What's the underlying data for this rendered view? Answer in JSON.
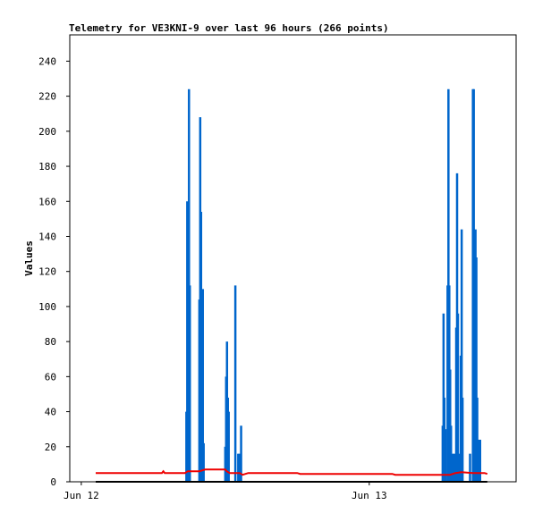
{
  "chart_data": {
    "type": "line",
    "title": "Telemetry for VE3KNI-9 over last 96 hours (266 points)",
    "xlabel": "",
    "ylabel": "Values",
    "ylim": [
      0,
      255
    ],
    "yticks": [
      0,
      20,
      40,
      60,
      80,
      100,
      120,
      140,
      160,
      180,
      200,
      220,
      240
    ],
    "xlim": [
      -0.04,
      1.51
    ],
    "xticks": [
      {
        "label": "Jun 12",
        "x": 0
      },
      {
        "label": "Jun 13",
        "x": 1
      }
    ],
    "grid": false,
    "legend": "none",
    "series": [
      {
        "color": "#0066cc",
        "style": "spikes",
        "points": [
          [
            0.365,
            40
          ],
          [
            0.368,
            160
          ],
          [
            0.371,
            120
          ],
          [
            0.374,
            224
          ],
          [
            0.377,
            112
          ],
          [
            0.41,
            104
          ],
          [
            0.413,
            208
          ],
          [
            0.416,
            154
          ],
          [
            0.419,
            66
          ],
          [
            0.422,
            110
          ],
          [
            0.425,
            22
          ],
          [
            0.5,
            20
          ],
          [
            0.503,
            60
          ],
          [
            0.506,
            80
          ],
          [
            0.509,
            48
          ],
          [
            0.512,
            40
          ],
          [
            0.535,
            112
          ],
          [
            0.545,
            16
          ],
          [
            0.55,
            16
          ],
          [
            0.555,
            32
          ],
          [
            1.255,
            32
          ],
          [
            1.258,
            96
          ],
          [
            1.261,
            48
          ],
          [
            1.265,
            30
          ],
          [
            1.272,
            112
          ],
          [
            1.275,
            224
          ],
          [
            1.278,
            112
          ],
          [
            1.281,
            64
          ],
          [
            1.284,
            32
          ],
          [
            1.29,
            16
          ],
          [
            1.296,
            16
          ],
          [
            1.302,
            88
          ],
          [
            1.305,
            176
          ],
          [
            1.308,
            96
          ],
          [
            1.311,
            16
          ],
          [
            1.318,
            72
          ],
          [
            1.321,
            144
          ],
          [
            1.324,
            48
          ],
          [
            1.35,
            16
          ],
          [
            1.36,
            224
          ],
          [
            1.363,
            224
          ],
          [
            1.366,
            128
          ],
          [
            1.369,
            144
          ],
          [
            1.372,
            128
          ],
          [
            1.375,
            48
          ],
          [
            1.378,
            24
          ],
          [
            1.385,
            24
          ]
        ]
      },
      {
        "color": "#ee0000",
        "style": "line",
        "points": [
          [
            0.05,
            5
          ],
          [
            0.28,
            5
          ],
          [
            0.285,
            6
          ],
          [
            0.29,
            5
          ],
          [
            0.36,
            5
          ],
          [
            0.37,
            6
          ],
          [
            0.41,
            6
          ],
          [
            0.43,
            7
          ],
          [
            0.47,
            7
          ],
          [
            0.5,
            7
          ],
          [
            0.505,
            6
          ],
          [
            0.515,
            5
          ],
          [
            0.55,
            5
          ],
          [
            0.56,
            4
          ],
          [
            0.58,
            5
          ],
          [
            0.75,
            5
          ],
          [
            0.76,
            4.5
          ],
          [
            1.08,
            4.5
          ],
          [
            1.09,
            4
          ],
          [
            1.28,
            4
          ],
          [
            1.3,
            5
          ],
          [
            1.32,
            5.5
          ],
          [
            1.36,
            5
          ],
          [
            1.4,
            5
          ],
          [
            1.41,
            4.5
          ]
        ]
      },
      {
        "color": "#000000",
        "style": "line",
        "points": [
          [
            0.05,
            0
          ],
          [
            1.41,
            0
          ]
        ]
      }
    ]
  }
}
